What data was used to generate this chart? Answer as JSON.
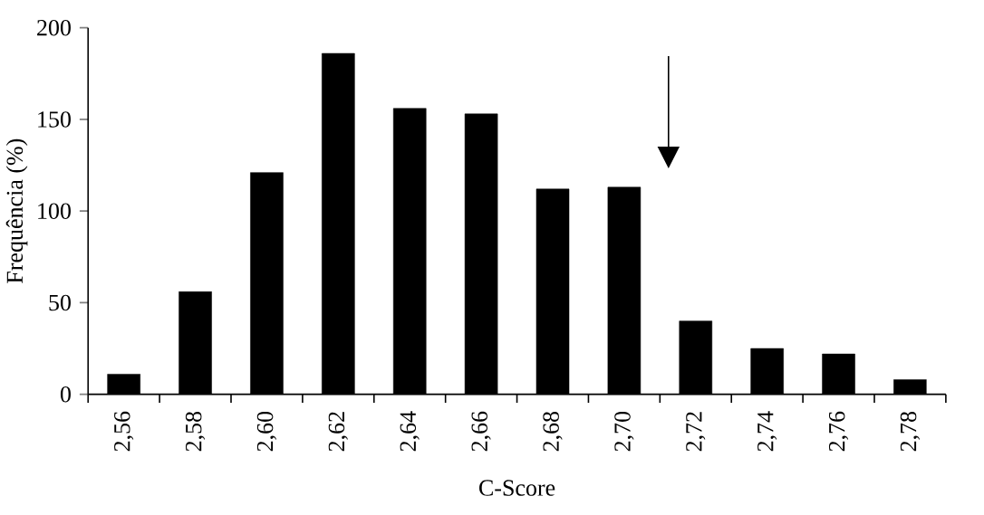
{
  "chart_data": {
    "type": "bar",
    "xlabel": "C-Score",
    "ylabel": "Frequência (%)",
    "categories": [
      "2,56",
      "2,58",
      "2,60",
      "2,62",
      "2,64",
      "2,66",
      "2,68",
      "2,70",
      "2,72",
      "2,74",
      "2,76",
      "2,78"
    ],
    "values": [
      11,
      56,
      121,
      186,
      156,
      153,
      112,
      113,
      40,
      25,
      22,
      8
    ],
    "color": "#000000",
    "ylim": [
      0,
      200
    ],
    "yticks": [
      0,
      50,
      100,
      150,
      200
    ],
    "grid": false
  }
}
